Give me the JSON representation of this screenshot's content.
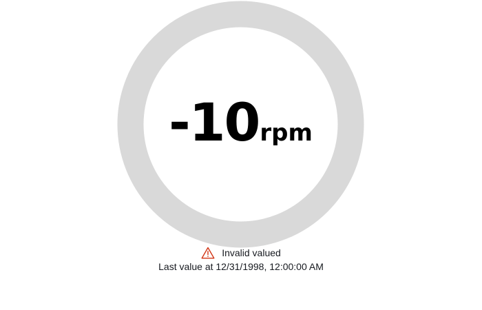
{
  "gauge": {
    "value": "-10",
    "unit": "rpm",
    "ring_color": "#d9d9d9",
    "value_color": "#000000"
  },
  "status": {
    "icon": "warning-triangle-icon",
    "icon_color": "#d13212",
    "message": "Invalid valued"
  },
  "timestamp": {
    "text": "Last value at 12/31/1998, 12:00:00 AM"
  }
}
